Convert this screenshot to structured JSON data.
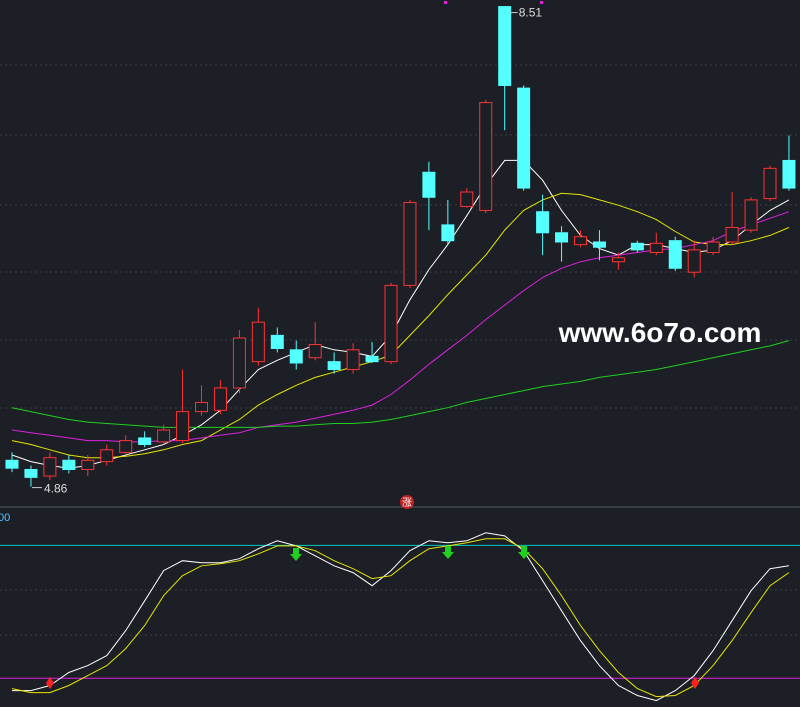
{
  "chart_data": [
    {
      "type": "candlestick",
      "open": [
        5.06,
        4.99,
        4.94,
        5.06,
        4.99,
        5.05,
        5.12,
        5.23,
        5.2,
        5.21,
        5.43,
        5.44,
        5.61,
        5.81,
        6.01,
        5.9,
        5.84,
        5.81,
        5.75,
        5.85,
        5.81,
        6.39,
        7.25,
        6.85,
        6.99,
        6.96,
        8.51,
        7.89,
        6.95,
        6.79,
        6.7,
        6.72,
        6.57,
        6.71,
        6.64,
        6.73,
        6.49,
        6.64,
        6.72,
        6.81,
        7.05,
        7.34
      ],
      "high": [
        5.12,
        5.02,
        5.12,
        5.1,
        5.1,
        5.18,
        5.25,
        5.28,
        5.33,
        5.75,
        5.63,
        5.67,
        6.05,
        6.22,
        6.07,
        5.97,
        6.11,
        5.88,
        5.95,
        5.96,
        6.41,
        7.04,
        7.33,
        7.04,
        7.13,
        7.8,
        8.51,
        7.91,
        7.08,
        6.84,
        6.81,
        6.81,
        6.64,
        6.73,
        6.79,
        6.76,
        6.73,
        6.76,
        7.1,
        7.06,
        7.3,
        7.53
      ],
      "low": [
        4.97,
        4.86,
        4.91,
        4.96,
        4.94,
        5.02,
        5.1,
        5.16,
        5.18,
        5.19,
        5.4,
        5.41,
        5.57,
        5.78,
        5.88,
        5.75,
        5.82,
        5.72,
        5.72,
        5.8,
        5.79,
        6.37,
        6.81,
        6.7,
        6.98,
        6.94,
        7.57,
        7.11,
        6.62,
        6.57,
        6.68,
        6.58,
        6.51,
        6.64,
        6.62,
        6.5,
        6.45,
        6.62,
        6.7,
        6.79,
        7.03,
        7.11
      ],
      "close": [
        5.0,
        4.93,
        5.08,
        4.99,
        5.06,
        5.14,
        5.21,
        5.18,
        5.29,
        5.43,
        5.5,
        5.61,
        5.99,
        6.11,
        5.91,
        5.8,
        5.94,
        5.75,
        5.9,
        5.81,
        6.39,
        7.02,
        7.06,
        6.73,
        7.1,
        7.78,
        7.91,
        7.13,
        6.79,
        6.72,
        6.76,
        6.68,
        6.6,
        6.66,
        6.71,
        6.52,
        6.66,
        6.72,
        6.83,
        7.04,
        7.28,
        7.13
      ],
      "up_color": "#ff3232",
      "down_color": "#54ffff",
      "ylim": [
        4.72,
        8.56
      ],
      "lines": [
        {
          "color": "#ffffff",
          "values": [
            5.1,
            5.05,
            5.02,
            5.0,
            5.02,
            5.06,
            5.1,
            5.14,
            5.18,
            5.25,
            5.33,
            5.44,
            5.6,
            5.75,
            5.82,
            5.88,
            5.94,
            5.9,
            5.88,
            5.85,
            6.01,
            6.28,
            6.51,
            6.7,
            6.92,
            7.15,
            7.34,
            7.34,
            7.19,
            6.96,
            6.77,
            6.67,
            6.62,
            6.7,
            6.7,
            6.67,
            6.64,
            6.66,
            6.73,
            6.85,
            6.96,
            7.04
          ]
        },
        {
          "color": "#e6e600",
          "values": [
            5.21,
            5.18,
            5.14,
            5.1,
            5.08,
            5.08,
            5.09,
            5.11,
            5.14,
            5.18,
            5.21,
            5.29,
            5.37,
            5.48,
            5.56,
            5.63,
            5.69,
            5.73,
            5.77,
            5.81,
            5.86,
            6.01,
            6.16,
            6.32,
            6.47,
            6.62,
            6.81,
            6.96,
            7.04,
            7.09,
            7.08,
            7.04,
            7.0,
            6.95,
            6.89,
            6.8,
            6.72,
            6.7,
            6.7,
            6.73,
            6.77,
            6.83
          ]
        },
        {
          "color": "#e020e0",
          "values": [
            5.29,
            5.27,
            5.25,
            5.23,
            5.21,
            5.21,
            5.2,
            5.2,
            5.21,
            5.21,
            5.23,
            5.25,
            5.27,
            5.31,
            5.33,
            5.35,
            5.38,
            5.41,
            5.44,
            5.48,
            5.56,
            5.67,
            5.79,
            5.9,
            6.01,
            6.13,
            6.24,
            6.35,
            6.45,
            6.52,
            6.57,
            6.6,
            6.62,
            6.64,
            6.66,
            6.67,
            6.7,
            6.73,
            6.8,
            6.85,
            6.9,
            6.95
          ]
        },
        {
          "color": "#20d020",
          "values": [
            5.46,
            5.43,
            5.4,
            5.37,
            5.35,
            5.34,
            5.33,
            5.32,
            5.31,
            5.31,
            5.31,
            5.31,
            5.31,
            5.31,
            5.32,
            5.32,
            5.33,
            5.34,
            5.34,
            5.35,
            5.37,
            5.4,
            5.43,
            5.46,
            5.5,
            5.53,
            5.56,
            5.59,
            5.62,
            5.64,
            5.66,
            5.69,
            5.71,
            5.73,
            5.75,
            5.78,
            5.81,
            5.84,
            5.87,
            5.9,
            5.93,
            5.97
          ]
        }
      ],
      "watermark": "www.6o7o.com",
      "badge": "涨"
    },
    {
      "type": "line",
      "label": "00",
      "ylim": [
        7,
        96
      ],
      "hlines": [
        {
          "value": 80,
          "color": "#00c8c8"
        },
        {
          "value": 20,
          "color": "#e020e0"
        }
      ],
      "lines": [
        {
          "color": "#ffffff",
          "values": [
            14.4,
            14.4,
            16.7,
            22.6,
            25.7,
            30.2,
            41.5,
            55.0,
            68.6,
            73.1,
            72.2,
            72.2,
            74.0,
            78.5,
            82.1,
            79.8,
            75.3,
            70.8,
            67.7,
            61.8,
            68.6,
            77.6,
            82.1,
            81.2,
            82.1,
            85.7,
            84.3,
            77.6,
            64.1,
            50.5,
            37.0,
            25.7,
            16.7,
            12.2,
            9.9,
            14.4,
            21.2,
            32.5,
            46.0,
            59.5,
            69.5,
            70.8
          ]
        },
        {
          "color": "#e6e600",
          "values": [
            15.3,
            13.5,
            13.5,
            16.7,
            21.2,
            25.7,
            33.4,
            43.8,
            57.3,
            66.3,
            70.8,
            71.7,
            73.1,
            76.2,
            79.8,
            79.8,
            77.6,
            73.1,
            69.5,
            65.0,
            66.3,
            73.1,
            78.5,
            79.8,
            81.2,
            83.0,
            83.0,
            78.5,
            69.5,
            57.3,
            43.8,
            32.5,
            22.6,
            15.3,
            11.7,
            12.2,
            16.7,
            25.7,
            37.0,
            49.6,
            61.8,
            67.7
          ]
        }
      ]
    }
  ]
}
